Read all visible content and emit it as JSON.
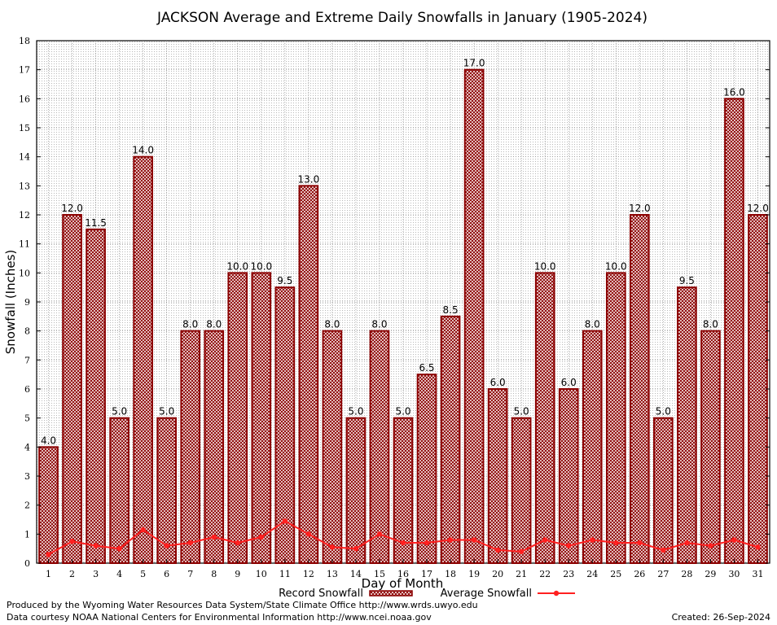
{
  "chart_data": {
    "type": "bar",
    "title": "JACKSON Average and Extreme Daily Snowfalls in January (1905-2024)",
    "xlabel": "Day of Month",
    "ylabel": "Snowfall (Inches)",
    "ylim": [
      0,
      18
    ],
    "yticks": [
      0,
      1,
      2,
      3,
      4,
      5,
      6,
      7,
      8,
      9,
      10,
      11,
      12,
      13,
      14,
      15,
      16,
      17,
      18
    ],
    "grid": true,
    "legend_placement": "bottom-center",
    "categories": [
      "1",
      "2",
      "3",
      "4",
      "5",
      "6",
      "7",
      "8",
      "9",
      "10",
      "11",
      "12",
      "13",
      "14",
      "15",
      "16",
      "17",
      "18",
      "19",
      "20",
      "21",
      "22",
      "23",
      "24",
      "25",
      "26",
      "27",
      "28",
      "29",
      "30",
      "31"
    ],
    "series": [
      {
        "name": "Record Snowfall",
        "kind": "bar",
        "color": "#8b0000",
        "values": [
          4.0,
          12.0,
          11.5,
          5.0,
          14.0,
          5.0,
          8.0,
          8.0,
          10.0,
          10.0,
          9.5,
          13.0,
          8.0,
          5.0,
          8.0,
          5.0,
          6.5,
          8.5,
          17.0,
          6.0,
          5.0,
          10.0,
          6.0,
          8.0,
          10.0,
          12.0,
          5.0,
          9.5,
          8.0,
          16.0,
          12.0
        ],
        "labels": [
          "4.0",
          "12.0",
          "11.5",
          "5.0",
          "14.0",
          "5.0",
          "8.0",
          "8.0",
          "10.0",
          "10.0",
          "9.5",
          "13.0",
          "8.0",
          "5.0",
          "8.0",
          "5.0",
          "6.5",
          "8.5",
          "17.0",
          "6.0",
          "5.0",
          "10.0",
          "6.0",
          "8.0",
          "10.0",
          "12.0",
          "5.0",
          "9.5",
          "8.0",
          "16.0",
          "12.0"
        ]
      },
      {
        "name": "Average Snowfall",
        "kind": "line",
        "color": "#ff2020",
        "values": [
          0.3,
          0.75,
          0.6,
          0.5,
          1.15,
          0.6,
          0.7,
          0.9,
          0.7,
          0.9,
          1.45,
          1.0,
          0.55,
          0.5,
          1.0,
          0.7,
          0.7,
          0.8,
          0.8,
          0.45,
          0.4,
          0.8,
          0.6,
          0.8,
          0.7,
          0.7,
          0.45,
          0.7,
          0.6,
          0.8,
          0.55
        ]
      }
    ]
  },
  "footer": {
    "produced_by": "Produced by the Wyoming Water Resources Data System/State Climate Office http://www.wrds.uwyo.edu",
    "data_courtesy": "Data courtesy NOAA National Centers for Environmental Information http://www.ncei.noaa.gov",
    "created": "Created: 26-Sep-2024"
  }
}
